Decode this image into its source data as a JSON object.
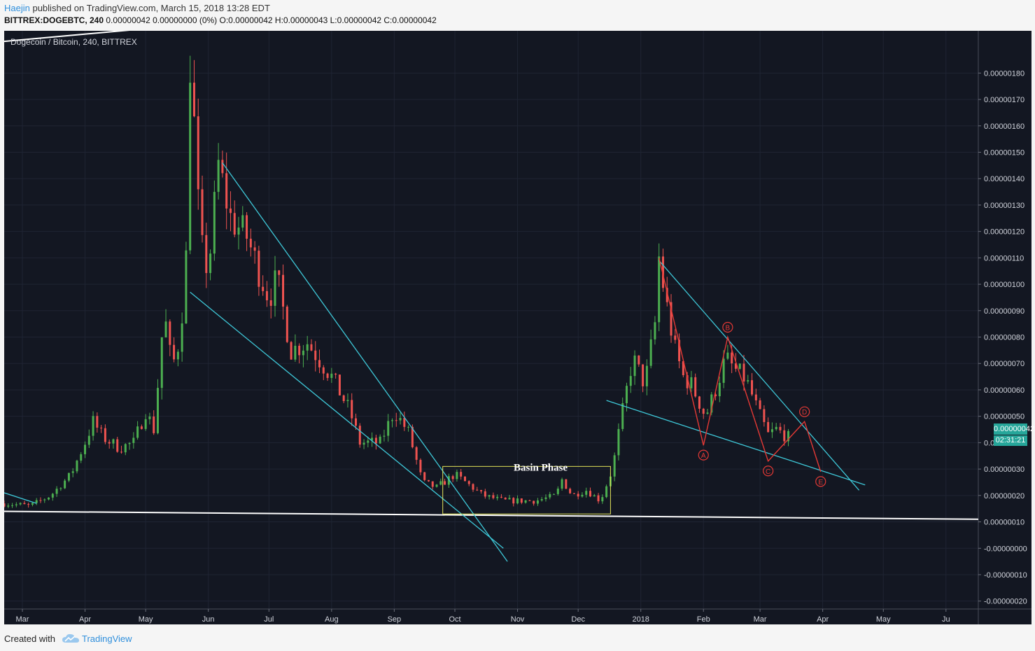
{
  "header": {
    "author": "Haejin",
    "published": " published on TradingView.com, March 15, 2018 13:28 EDT",
    "symbol": "BITTREX:DOGEBTC, 240",
    "ohlc": " 0.00000042 0.00000000 (0%) O:0.00000042 H:0.00000043 L:0.00000042 C:0.00000042"
  },
  "footer": {
    "created_with": "Created with",
    "brand": "TradingView"
  },
  "colors": {
    "background": "#131722",
    "up": "#4caf50",
    "down": "#ef5350",
    "trendline": "#3ec8d8",
    "support": "#ffffff",
    "wave": "#e53935",
    "box": "#e6e65a",
    "price_tag": "#26a69a"
  },
  "chart_data": {
    "type": "candlestick",
    "title": "Dogecoin / Bitcoin, 240, BITTREX",
    "x_tick_labels": [
      "Mar",
      "Apr",
      "May",
      "Jun",
      "Jul",
      "Aug",
      "Sep",
      "Oct",
      "Nov",
      "Dec",
      "2018",
      "Feb",
      "Mar",
      "Apr",
      "May",
      "Ju"
    ],
    "y_tick_labels": [
      "0.00000180",
      "0.00000170",
      "0.00000160",
      "0.00000150",
      "0.00000140",
      "0.00000130",
      "0.00000120",
      "0.00000110",
      "0.00000100",
      "0.00000090",
      "0.00000080",
      "0.00000070",
      "0.00000060",
      "0.00000050",
      "0.00000040",
      "0.00000030",
      "0.00000020",
      "0.00000010",
      "-0.00000000",
      "-0.00000010",
      "-0.00000020"
    ],
    "y_ticks": [
      180,
      170,
      160,
      150,
      140,
      130,
      120,
      110,
      100,
      90,
      80,
      70,
      60,
      50,
      40,
      30,
      20,
      10,
      0,
      -10,
      -20
    ],
    "y_unit_scale": 1e-08,
    "ylim": [
      -23,
      196
    ],
    "xlim": [
      "2017-02-20",
      "2018-06-17"
    ],
    "last_price": "0.00000042",
    "countdown": "02:31:21",
    "price_path": [
      [
        "2017-02-20",
        17
      ],
      [
        "2017-03-05",
        16
      ],
      [
        "2017-03-15",
        20
      ],
      [
        "2017-03-25",
        28
      ],
      [
        "2017-04-01",
        40
      ],
      [
        "2017-04-05",
        48
      ],
      [
        "2017-04-10",
        42
      ],
      [
        "2017-04-18",
        38
      ],
      [
        "2017-04-25",
        40
      ],
      [
        "2017-05-01",
        52
      ],
      [
        "2017-05-05",
        45
      ],
      [
        "2017-05-08",
        70
      ],
      [
        "2017-05-10",
        90
      ],
      [
        "2017-05-14",
        68
      ],
      [
        "2017-05-18",
        80
      ],
      [
        "2017-05-21",
        110
      ],
      [
        "2017-05-23",
        185
      ],
      [
        "2017-05-25",
        160
      ],
      [
        "2017-05-28",
        115
      ],
      [
        "2017-06-01",
        105
      ],
      [
        "2017-06-06",
        145
      ],
      [
        "2017-06-12",
        125
      ],
      [
        "2017-06-20",
        118
      ],
      [
        "2017-06-26",
        105
      ],
      [
        "2017-07-01",
        95
      ],
      [
        "2017-07-05",
        102
      ],
      [
        "2017-07-12",
        75
      ],
      [
        "2017-07-20",
        78
      ],
      [
        "2017-08-01",
        65
      ],
      [
        "2017-08-10",
        52
      ],
      [
        "2017-08-15",
        40
      ],
      [
        "2017-08-25",
        40
      ],
      [
        "2017-09-01",
        52
      ],
      [
        "2017-09-08",
        44
      ],
      [
        "2017-09-15",
        25
      ],
      [
        "2017-09-22",
        23
      ],
      [
        "2017-10-01",
        28
      ],
      [
        "2017-10-15",
        20
      ],
      [
        "2017-10-25",
        18
      ],
      [
        "2017-11-10",
        18
      ],
      [
        "2017-11-20",
        20
      ],
      [
        "2017-11-23",
        26
      ],
      [
        "2017-11-28",
        20
      ],
      [
        "2017-12-05",
        22
      ],
      [
        "2017-12-12",
        18
      ],
      [
        "2017-12-18",
        30
      ],
      [
        "2017-12-22",
        48
      ],
      [
        "2017-12-25",
        60
      ],
      [
        "2017-12-28",
        72
      ],
      [
        "2018-01-03",
        62
      ],
      [
        "2018-01-08",
        85
      ],
      [
        "2018-01-10",
        110
      ],
      [
        "2018-01-13",
        95
      ],
      [
        "2018-01-18",
        75
      ],
      [
        "2018-01-22",
        65
      ],
      [
        "2018-01-26",
        62
      ],
      [
        "2018-02-02",
        50
      ],
      [
        "2018-02-06",
        58
      ],
      [
        "2018-02-12",
        72
      ],
      [
        "2018-02-16",
        68
      ],
      [
        "2018-02-22",
        64
      ],
      [
        "2018-03-01",
        50
      ],
      [
        "2018-03-05",
        43
      ],
      [
        "2018-03-09",
        45
      ],
      [
        "2018-03-15",
        42
      ]
    ],
    "annotations": {
      "box_label": "Basin Phase",
      "wave_labels": [
        "A",
        "B",
        "C",
        "D",
        "E"
      ],
      "wave_points": [
        {
          "label": "",
          "date": "2018-01-10",
          "price": 110
        },
        {
          "label": "A",
          "date": "2018-02-01",
          "price": 39
        },
        {
          "label": "B",
          "date": "2018-02-13",
          "price": 80
        },
        {
          "label": "C",
          "date": "2018-03-05",
          "price": 33
        },
        {
          "label": "D",
          "date": "2018-03-23",
          "price": 48
        },
        {
          "label": "E",
          "date": "2018-03-31",
          "price": 29
        }
      ],
      "basin_box": {
        "x0": "2017-09-25",
        "x1": "2017-12-17",
        "y0": 13,
        "y1": 31
      },
      "trendlines": [
        {
          "x0": "2017-06-08",
          "y0": 146,
          "x1": "2017-10-27",
          "y1": -5
        },
        {
          "x0": "2017-05-23",
          "y0": 97,
          "x1": "2017-10-25",
          "y1": 0
        },
        {
          "x0": "2017-02-20",
          "y0": 21,
          "x1": "2017-03-08",
          "y1": 17
        },
        {
          "x0": "2018-01-10",
          "y0": 109,
          "x1": "2018-04-19",
          "y1": 22
        },
        {
          "x0": "2017-12-15",
          "y0": 56,
          "x1": "2018-04-22",
          "y1": 24
        }
      ],
      "support_lines": [
        {
          "x0": "2017-02-20",
          "y0": 14,
          "x1": "2018-06-17",
          "y1": 11
        },
        {
          "x0": "2017-02-20",
          "y0": 192,
          "x1": "2017-06-02",
          "y1": 199
        }
      ]
    }
  }
}
